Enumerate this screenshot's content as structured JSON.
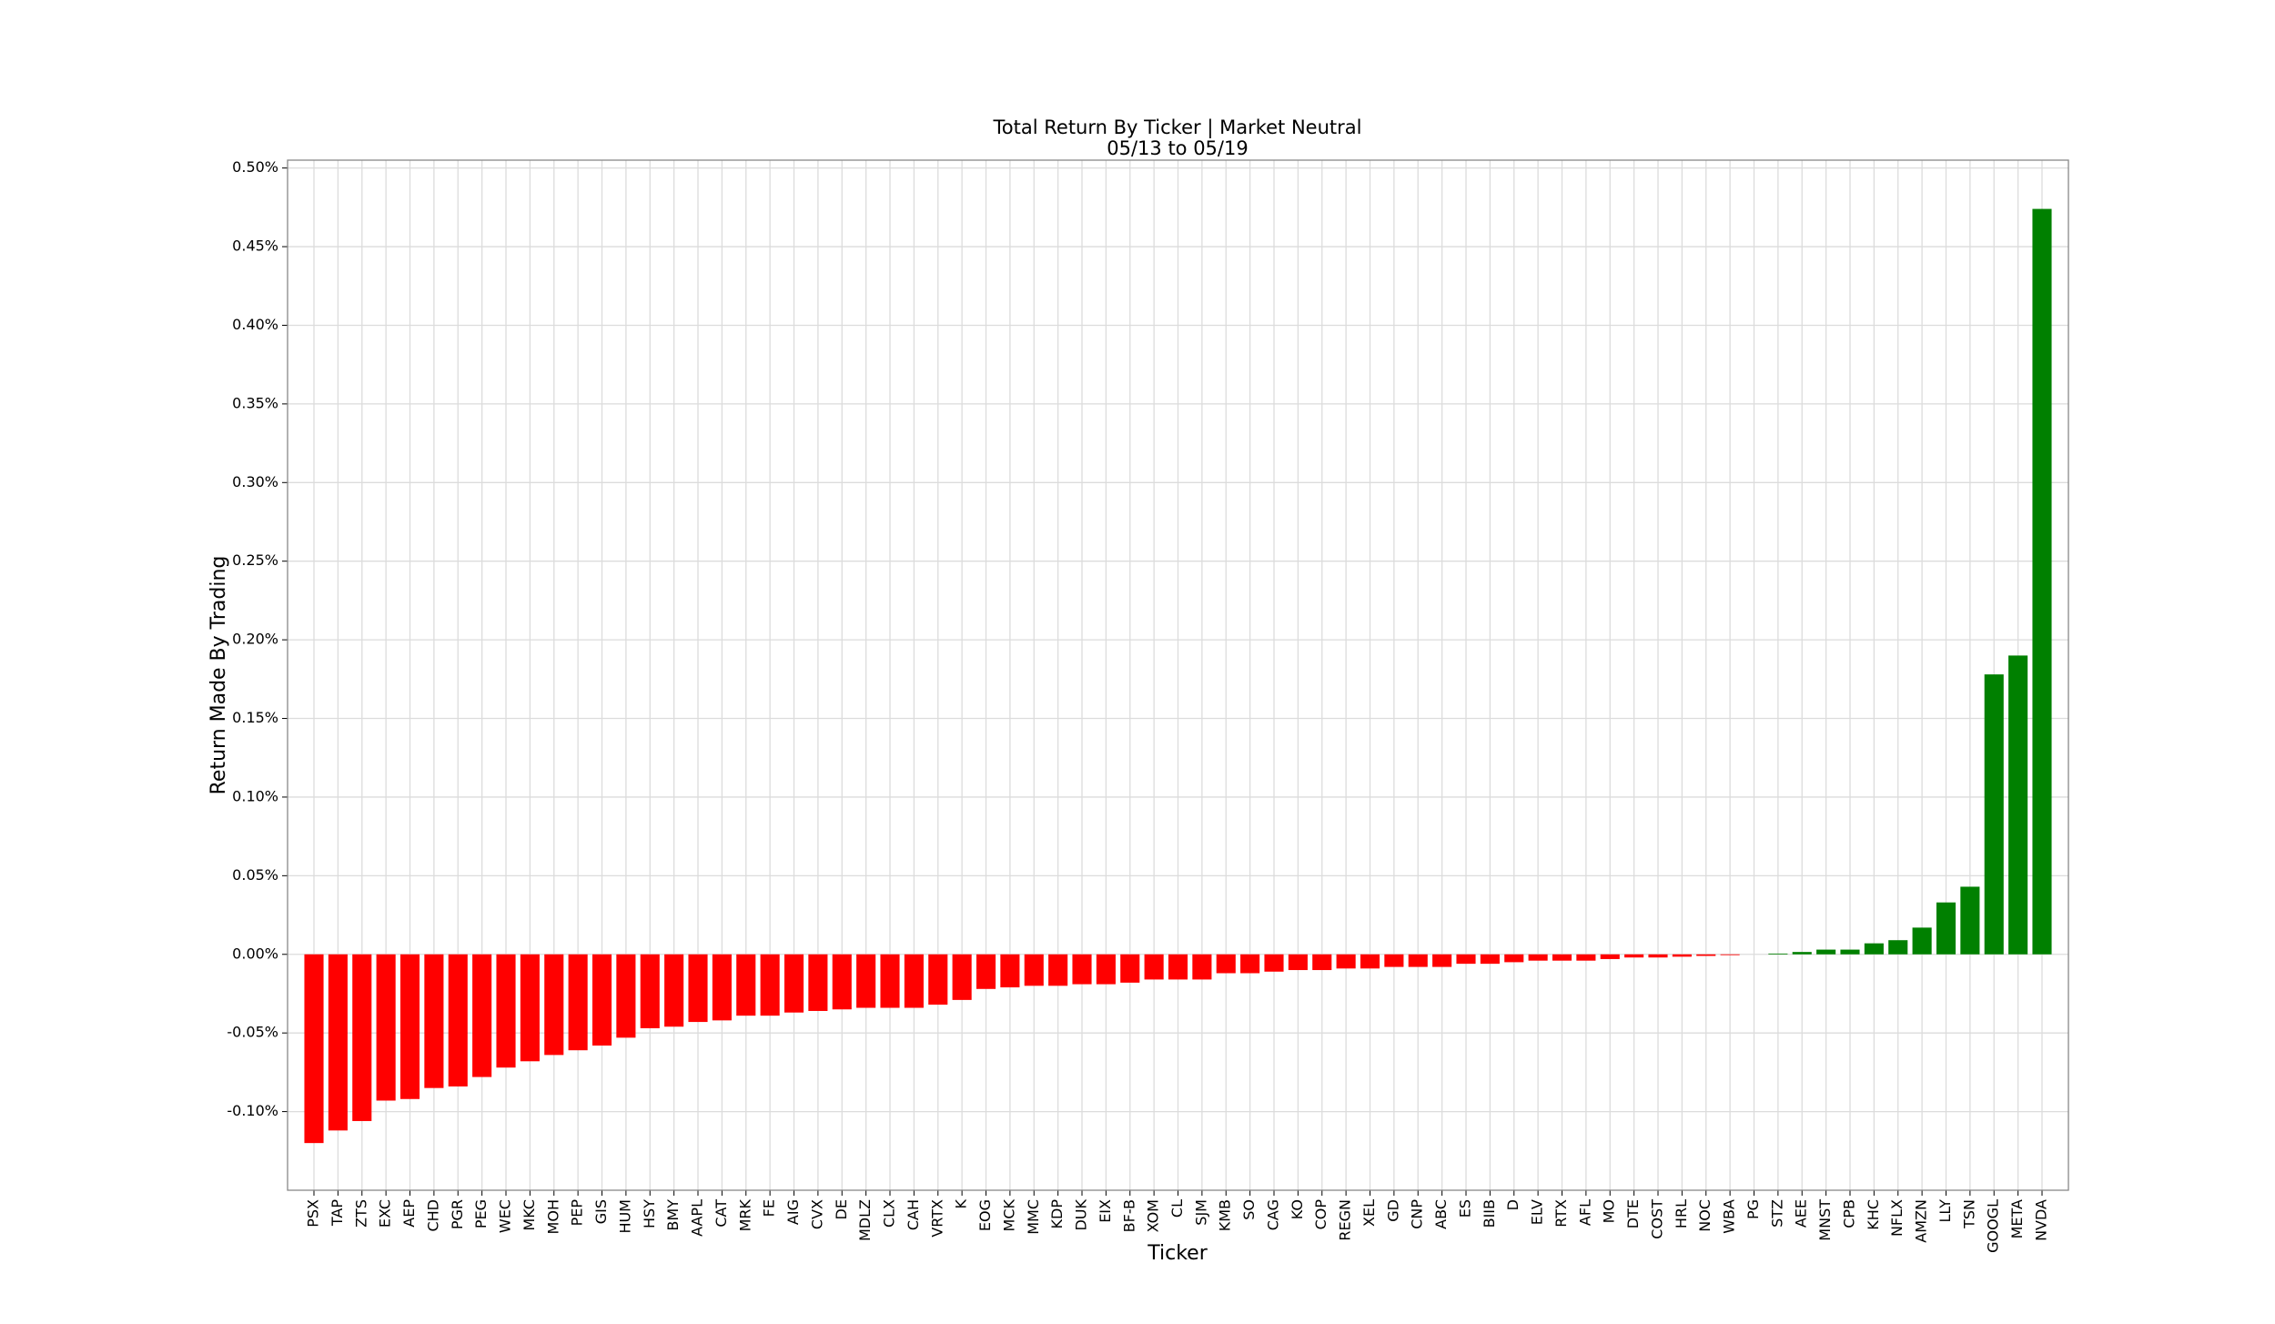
{
  "chart_data": {
    "type": "bar",
    "title": "Total Return By Ticker | Market Neutral",
    "subtitle": "05/13 to 05/19",
    "x_label": "Ticker",
    "y_label": "Return Made By Trading",
    "categories": [
      "PSX",
      "TAP",
      "ZTS",
      "EXC",
      "AEP",
      "CHD",
      "PGR",
      "PEG",
      "WEC",
      "MKC",
      "MOH",
      "PEP",
      "GIS",
      "HUM",
      "HSY",
      "BMY",
      "AAPL",
      "CAT",
      "MRK",
      "FE",
      "AIG",
      "CVX",
      "DE",
      "MDLZ",
      "CLX",
      "CAH",
      "VRTX",
      "K",
      "EOG",
      "MCK",
      "MMC",
      "KDP",
      "DUK",
      "EIX",
      "BF-B",
      "XOM",
      "CL",
      "SJM",
      "KMB",
      "SO",
      "CAG",
      "KO",
      "COP",
      "REGN",
      "XEL",
      "GD",
      "CNP",
      "ABC",
      "ES",
      "BIIB",
      "D",
      "ELV",
      "RTX",
      "AFL",
      "MO",
      "DTE",
      "COST",
      "HRL",
      "NOC",
      "WBA",
      "PG",
      "STZ",
      "AEE",
      "MNST",
      "CPB",
      "KHC",
      "NFLX",
      "AMZN",
      "LLY",
      "TSN",
      "GOOGL",
      "META",
      "NVDA"
    ],
    "values": [
      -0.12,
      -0.112,
      -0.106,
      -0.093,
      -0.092,
      -0.085,
      -0.084,
      -0.078,
      -0.072,
      -0.068,
      -0.064,
      -0.061,
      -0.058,
      -0.053,
      -0.047,
      -0.046,
      -0.043,
      -0.042,
      -0.039,
      -0.039,
      -0.037,
      -0.036,
      -0.035,
      -0.034,
      -0.034,
      -0.034,
      -0.032,
      -0.029,
      -0.022,
      -0.021,
      -0.02,
      -0.02,
      -0.019,
      -0.019,
      -0.018,
      -0.016,
      -0.016,
      -0.016,
      -0.012,
      -0.012,
      -0.011,
      -0.01,
      -0.01,
      -0.009,
      -0.009,
      -0.008,
      -0.008,
      -0.008,
      -0.006,
      -0.006,
      -0.005,
      -0.004,
      -0.004,
      -0.004,
      -0.003,
      -0.002,
      -0.002,
      -0.0015,
      -0.001,
      -0.0005,
      0,
      0.0005,
      0.0015,
      0.003,
      0.003,
      0.007,
      0.009,
      0.017,
      0.033,
      0.043,
      0.178,
      0.19,
      0.474
    ],
    "colors": [
      "#ff0000",
      "#ff0000",
      "#ff0000",
      "#ff0000",
      "#ff0000",
      "#ff0000",
      "#ff0000",
      "#ff0000",
      "#ff0000",
      "#ff0000",
      "#ff0000",
      "#ff0000",
      "#ff0000",
      "#ff0000",
      "#ff0000",
      "#ff0000",
      "#ff0000",
      "#ff0000",
      "#ff0000",
      "#ff0000",
      "#ff0000",
      "#ff0000",
      "#ff0000",
      "#ff0000",
      "#ff0000",
      "#ff0000",
      "#ff0000",
      "#ff0000",
      "#ff0000",
      "#ff0000",
      "#ff0000",
      "#ff0000",
      "#ff0000",
      "#ff0000",
      "#ff0000",
      "#ff0000",
      "#ff0000",
      "#ff0000",
      "#ff0000",
      "#ff0000",
      "#ff0000",
      "#ff0000",
      "#ff0000",
      "#ff0000",
      "#ff0000",
      "#ff0000",
      "#ff0000",
      "#ff0000",
      "#ff0000",
      "#ff0000",
      "#ff0000",
      "#ff0000",
      "#ff0000",
      "#ff0000",
      "#ff0000",
      "#ff0000",
      "#ff0000",
      "#ff0000",
      "#ff0000",
      "#ff0000",
      "#008000",
      "#008000",
      "#008000",
      "#008000",
      "#008000",
      "#008000",
      "#008000",
      "#008000",
      "#008000",
      "#008000",
      "#008000",
      "#008000",
      "#008000"
    ],
    "ylim": [
      -0.15,
      0.505
    ],
    "yticks": [
      {
        "value": -0.1,
        "label": "-0.10%"
      },
      {
        "value": -0.05,
        "label": "-0.05%"
      },
      {
        "value": 0,
        "label": "0.00%"
      },
      {
        "value": 0.05,
        "label": "0.05%"
      },
      {
        "value": 0.1,
        "label": "0.10%"
      },
      {
        "value": 0.15,
        "label": "0.15%"
      },
      {
        "value": 0.2,
        "label": "0.20%"
      },
      {
        "value": 0.25,
        "label": "0.25%"
      },
      {
        "value": 0.3,
        "label": "0.30%"
      },
      {
        "value": 0.35,
        "label": "0.35%"
      },
      {
        "value": 0.4,
        "label": "0.40%"
      },
      {
        "value": 0.45,
        "label": "0.45%"
      },
      {
        "value": 0.5,
        "label": "0.50%"
      }
    ],
    "grid": true
  }
}
